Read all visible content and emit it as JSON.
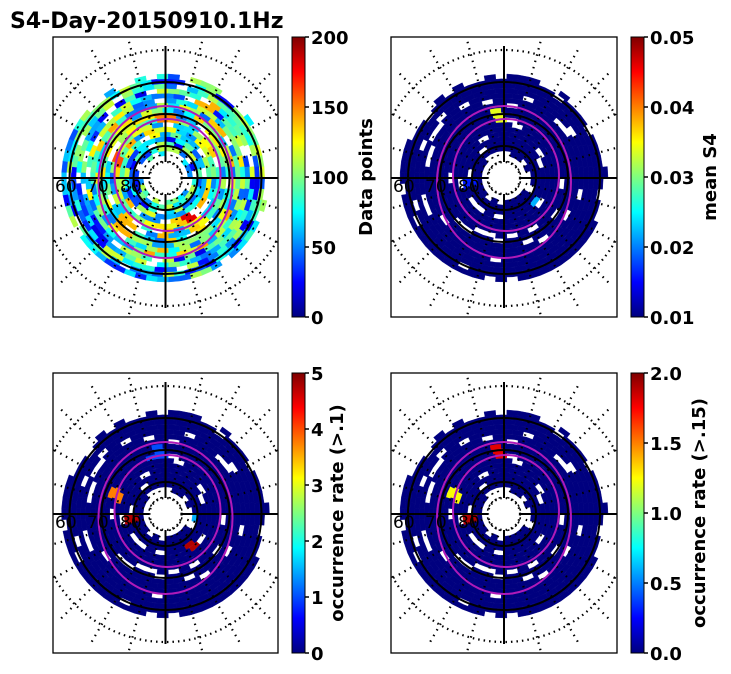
{
  "figure": {
    "title": "S4-Day-20150910.1Hz",
    "colormap": "jet",
    "jet_stops": [
      "#00007f",
      "#0000ff",
      "#007fff",
      "#00ffff",
      "#7fff7f",
      "#ffff00",
      "#ff7f00",
      "#ff0000",
      "#7f0000"
    ],
    "grid_color": "#000000",
    "contour_color": "#b01ab8",
    "background_bin_color": "#00007f"
  },
  "chart_data": [
    {
      "type": "heatmap",
      "projection": "polar (magnetic latitude / MLT)",
      "panel": "top-left",
      "colorbar_label": "Data points",
      "colorbar_range": [
        0,
        200
      ],
      "colorbar_ticks": [
        "0",
        "50",
        "100",
        "150",
        "200"
      ],
      "lat_labels": [
        "60",
        "70",
        "80"
      ],
      "lat_circles_deg": [
        60,
        70,
        80
      ],
      "dominant_value_level": 0.35,
      "hotspots": [
        {
          "lat": 72,
          "mlt_deg": 270,
          "level": 0.75
        },
        {
          "lat": 74,
          "mlt_deg": 200,
          "level": 0.8
        },
        {
          "lat": 76,
          "mlt_deg": 60,
          "level": 0.9
        },
        {
          "lat": 70,
          "mlt_deg": 130,
          "level": 0.7
        },
        {
          "lat": 64,
          "mlt_deg": 300,
          "level": 0.7
        }
      ]
    },
    {
      "type": "heatmap",
      "projection": "polar (magnetic latitude / MLT)",
      "panel": "top-right",
      "colorbar_label": "mean S4",
      "colorbar_range": [
        0.01,
        0.05
      ],
      "colorbar_ticks": [
        "0.01",
        "0.02",
        "0.03",
        "0.04",
        "0.05"
      ],
      "lat_labels": [
        "60",
        "70",
        "80"
      ],
      "lat_circles_deg": [
        60,
        70,
        80
      ],
      "dominant_value_level": 0.0,
      "hotspots": [
        {
          "lat": 71,
          "mlt_deg": 265,
          "level": 0.6
        },
        {
          "lat": 78,
          "mlt_deg": 40,
          "level": 0.3
        },
        {
          "lat": 80,
          "mlt_deg": 175,
          "level": 0.15
        }
      ]
    },
    {
      "type": "heatmap",
      "projection": "polar (magnetic latitude / MLT)",
      "panel": "bottom-left",
      "colorbar_label": "occurrence rate (>.1)",
      "colorbar_range": [
        0,
        5
      ],
      "colorbar_ticks": [
        "0",
        "1",
        "2",
        "3",
        "4",
        "5"
      ],
      "lat_labels": [
        "60",
        "70",
        "80"
      ],
      "lat_circles_deg": [
        60,
        70,
        80
      ],
      "dominant_value_level": 0.0,
      "hotspots": [
        {
          "lat": 78,
          "mlt_deg": 30,
          "level": 0.35
        },
        {
          "lat": 78,
          "mlt_deg": 55,
          "level": 0.95
        },
        {
          "lat": 82,
          "mlt_deg": 3,
          "level": 0.3
        },
        {
          "lat": 80,
          "mlt_deg": 170,
          "level": 0.95
        },
        {
          "lat": 74,
          "mlt_deg": 205,
          "level": 0.75
        },
        {
          "lat": 71,
          "mlt_deg": 262,
          "level": 0.2
        }
      ]
    },
    {
      "type": "heatmap",
      "projection": "polar (magnetic latitude / MLT)",
      "panel": "bottom-right",
      "colorbar_label": "occurrence rate (>.15)",
      "colorbar_range": [
        0.0,
        2.0
      ],
      "colorbar_ticks": [
        "0.0",
        "0.5",
        "1.0",
        "1.5",
        "2.0"
      ],
      "lat_labels": [
        "60",
        "70",
        "80"
      ],
      "lat_circles_deg": [
        60,
        70,
        80
      ],
      "dominant_value_level": 0.0,
      "hotspots": [
        {
          "lat": 80,
          "mlt_deg": 170,
          "level": 0.95
        },
        {
          "lat": 74,
          "mlt_deg": 205,
          "level": 0.62
        },
        {
          "lat": 71,
          "mlt_deg": 265,
          "level": 0.9
        }
      ]
    }
  ]
}
